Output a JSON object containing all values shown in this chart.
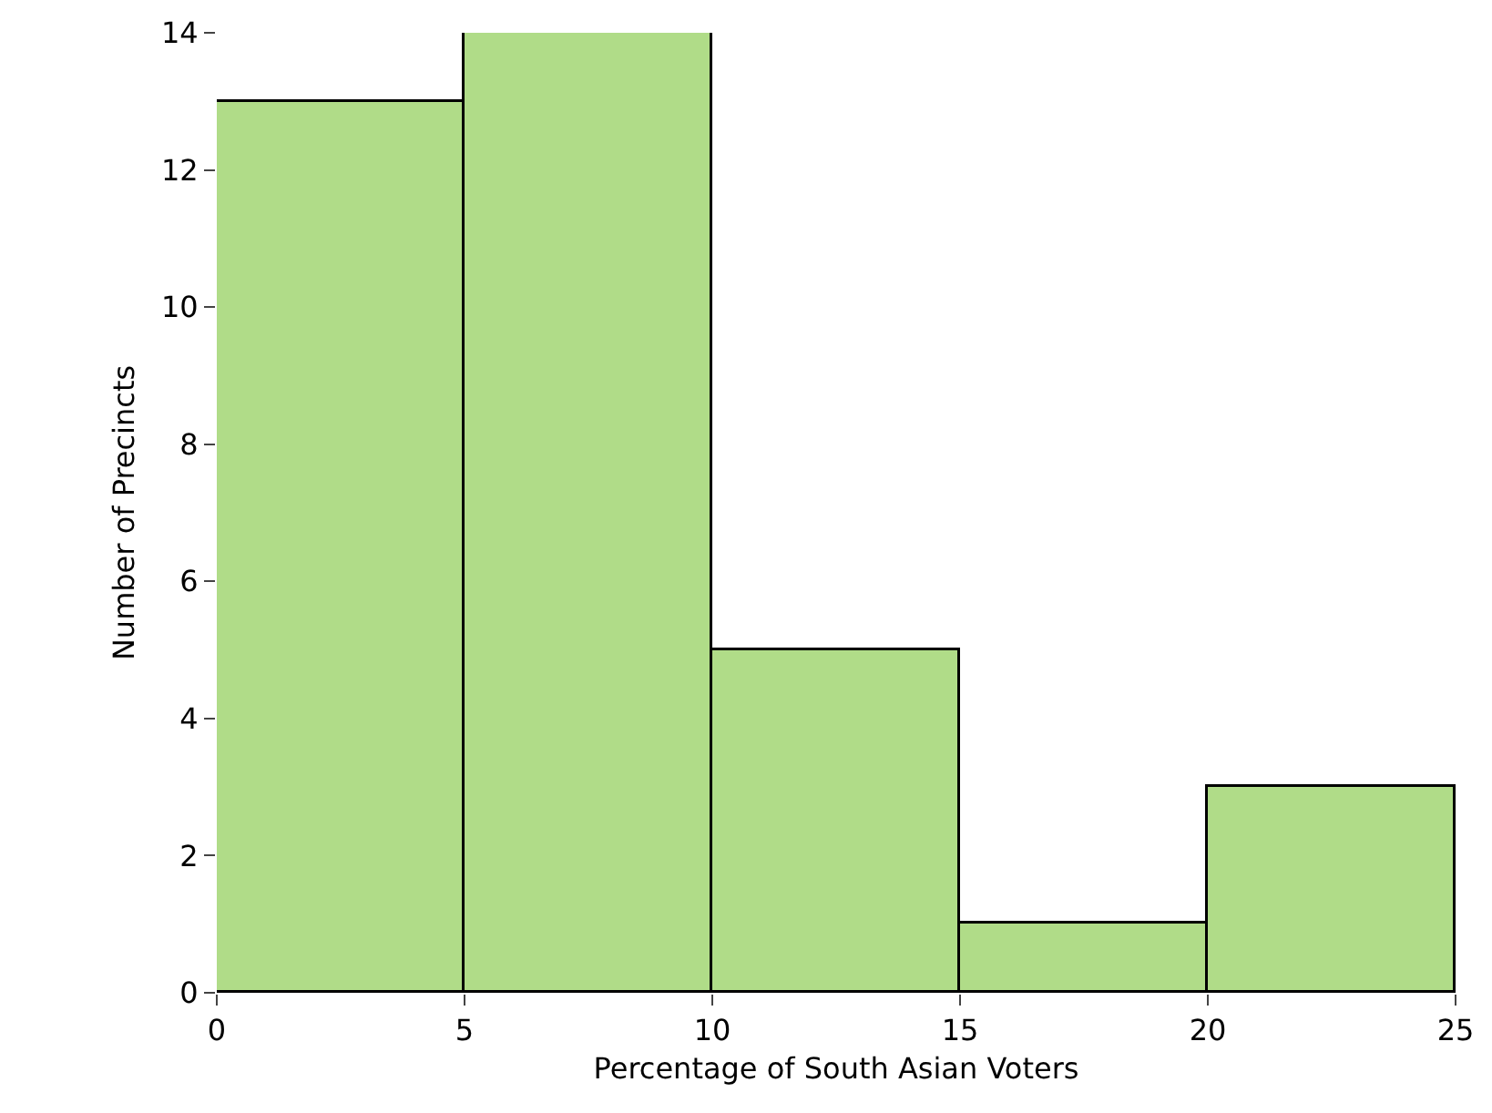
{
  "chart_data": {
    "type": "histogram",
    "xlabel": "Percentage of South Asian Voters",
    "ylabel": "Number of Precincts",
    "bins": [
      0,
      5,
      10,
      15,
      20,
      25
    ],
    "values": [
      13,
      14,
      5,
      1,
      3
    ],
    "color": "#b0dc88",
    "xlim": [
      0,
      25
    ],
    "xticks": [
      0,
      5,
      10,
      15,
      20,
      25
    ],
    "ylim": [
      0,
      14
    ],
    "yticks": [
      0,
      2,
      4,
      6,
      8,
      10,
      12,
      14
    ]
  }
}
